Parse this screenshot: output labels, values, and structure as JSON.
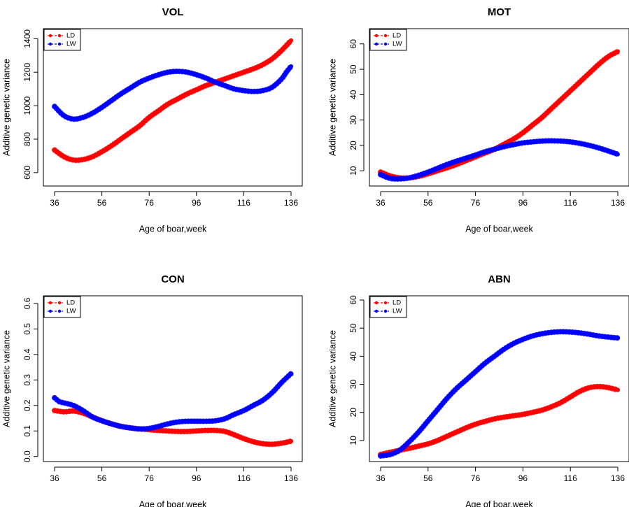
{
  "colors": {
    "LD": "#ff0000",
    "LW": "#0000ff",
    "axis": "#000000"
  },
  "chart_data": [
    {
      "type": "line",
      "title": "VOL",
      "xlabel": "Age of boar,week",
      "ylabel": "Additive genetic variance",
      "xlim": [
        36,
        136
      ],
      "ylim": [
        520,
        1460
      ],
      "xticks": [
        "36",
        "56",
        "76",
        "96",
        "116",
        "136"
      ],
      "yticks": [
        "600",
        "800",
        "1000",
        "1200",
        "1400"
      ],
      "legend": {
        "placement": "top-left",
        "entries": [
          "LD",
          "LW"
        ]
      },
      "series": [
        {
          "name": "LD",
          "x": [
            36,
            40,
            44,
            48,
            52,
            56,
            60,
            64,
            68,
            72,
            76,
            80,
            84,
            88,
            92,
            96,
            100,
            104,
            108,
            112,
            116,
            120,
            124,
            128,
            132,
            136
          ],
          "values": [
            735,
            695,
            675,
            678,
            695,
            725,
            760,
            800,
            840,
            880,
            930,
            970,
            1010,
            1040,
            1070,
            1095,
            1120,
            1140,
            1160,
            1180,
            1200,
            1220,
            1245,
            1280,
            1330,
            1390
          ]
        },
        {
          "name": "LW",
          "x": [
            36,
            40,
            44,
            48,
            52,
            56,
            60,
            64,
            68,
            72,
            76,
            80,
            84,
            88,
            92,
            96,
            100,
            104,
            108,
            112,
            116,
            120,
            124,
            128,
            132,
            134,
            136
          ],
          "values": [
            995,
            940,
            920,
            930,
            955,
            990,
            1030,
            1070,
            1105,
            1140,
            1165,
            1185,
            1200,
            1205,
            1200,
            1185,
            1165,
            1140,
            1120,
            1100,
            1090,
            1085,
            1090,
            1110,
            1160,
            1200,
            1235
          ]
        }
      ]
    },
    {
      "type": "line",
      "title": "MOT",
      "xlabel": "Age of boar,week",
      "ylabel": "Additive genetic variance",
      "xlim": [
        36,
        136
      ],
      "ylim": [
        4,
        66
      ],
      "xticks": [
        "36",
        "56",
        "76",
        "96",
        "116",
        "136"
      ],
      "yticks": [
        "10",
        "20",
        "30",
        "40",
        "50",
        "60"
      ],
      "legend": {
        "placement": "top-left",
        "entries": [
          "LD",
          "LW"
        ]
      },
      "series": [
        {
          "name": "LD",
          "x": [
            36,
            40,
            44,
            48,
            52,
            56,
            60,
            64,
            68,
            72,
            76,
            80,
            84,
            88,
            92,
            96,
            100,
            104,
            108,
            112,
            116,
            120,
            124,
            128,
            132,
            136
          ],
          "values": [
            9.5,
            8,
            7.2,
            7.2,
            7.8,
            8.8,
            10,
            11.2,
            12.5,
            14,
            15.5,
            17,
            18.5,
            20.5,
            22.5,
            25,
            28,
            31,
            34.5,
            38,
            41.5,
            45,
            48.5,
            52,
            55,
            57
          ]
        },
        {
          "name": "LW",
          "x": [
            36,
            40,
            44,
            48,
            52,
            56,
            60,
            64,
            68,
            72,
            76,
            80,
            84,
            88,
            92,
            96,
            100,
            104,
            108,
            112,
            116,
            120,
            124,
            128,
            132,
            136
          ],
          "values": [
            8.5,
            7,
            6.8,
            7.2,
            8.2,
            9.5,
            11,
            12.5,
            13.8,
            15,
            16.2,
            17.5,
            18.5,
            19.5,
            20.3,
            21,
            21.4,
            21.7,
            21.8,
            21.7,
            21.4,
            20.8,
            20,
            19,
            17.8,
            16.5
          ]
        }
      ]
    },
    {
      "type": "line",
      "title": "CON",
      "xlabel": "Age of boar,week",
      "ylabel": "Additive genetic variance",
      "xlim": [
        36,
        136
      ],
      "ylim": [
        -0.02,
        0.63
      ],
      "xticks": [
        "36",
        "56",
        "76",
        "96",
        "116",
        "136"
      ],
      "yticks": [
        "0.0",
        "0.1",
        "0.2",
        "0.3",
        "0.4",
        "0.5",
        "0.6"
      ],
      "legend": {
        "placement": "top-left",
        "entries": [
          "LD",
          "LW"
        ]
      },
      "series": [
        {
          "name": "LD",
          "x": [
            36,
            40,
            44,
            48,
            52,
            56,
            60,
            64,
            68,
            72,
            76,
            80,
            84,
            88,
            92,
            96,
            100,
            104,
            108,
            112,
            116,
            120,
            124,
            128,
            132,
            136
          ],
          "values": [
            0.18,
            0.175,
            0.178,
            0.17,
            0.155,
            0.14,
            0.128,
            0.118,
            0.112,
            0.108,
            0.105,
            0.102,
            0.1,
            0.098,
            0.098,
            0.1,
            0.102,
            0.102,
            0.098,
            0.085,
            0.07,
            0.058,
            0.05,
            0.048,
            0.052,
            0.06
          ]
        },
        {
          "name": "LW",
          "x": [
            36,
            38,
            40,
            44,
            48,
            52,
            56,
            60,
            64,
            68,
            72,
            76,
            80,
            84,
            88,
            92,
            96,
            100,
            104,
            108,
            112,
            116,
            120,
            124,
            128,
            132,
            136
          ],
          "values": [
            0.23,
            0.215,
            0.21,
            0.2,
            0.18,
            0.155,
            0.14,
            0.128,
            0.118,
            0.112,
            0.108,
            0.11,
            0.118,
            0.128,
            0.135,
            0.138,
            0.138,
            0.138,
            0.14,
            0.148,
            0.165,
            0.18,
            0.2,
            0.22,
            0.25,
            0.29,
            0.325
          ]
        }
      ]
    },
    {
      "type": "line",
      "title": "ABN",
      "xlabel": "Age of boar,week",
      "ylabel": "Additive genetic variance",
      "xlim": [
        36,
        136
      ],
      "ylim": [
        2.5,
        61.5
      ],
      "xticks": [
        "36",
        "56",
        "76",
        "96",
        "116",
        "136"
      ],
      "yticks": [
        "10",
        "20",
        "30",
        "40",
        "50",
        "60"
      ],
      "legend": {
        "placement": "top-left",
        "entries": [
          "LD",
          "LW"
        ]
      },
      "series": [
        {
          "name": "LD",
          "x": [
            36,
            40,
            44,
            48,
            52,
            56,
            60,
            64,
            68,
            72,
            76,
            80,
            84,
            88,
            92,
            96,
            100,
            104,
            108,
            112,
            116,
            120,
            124,
            128,
            132,
            136
          ],
          "values": [
            5,
            5.8,
            6.5,
            7.2,
            8,
            8.8,
            10,
            11.5,
            13,
            14.5,
            15.8,
            16.8,
            17.7,
            18.3,
            18.8,
            19.3,
            20,
            20.8,
            22,
            23.5,
            25.5,
            27.5,
            28.8,
            29.2,
            28.8,
            28
          ]
        },
        {
          "name": "LW",
          "x": [
            36,
            40,
            44,
            48,
            52,
            56,
            60,
            64,
            68,
            72,
            76,
            80,
            84,
            88,
            92,
            96,
            100,
            104,
            108,
            112,
            116,
            120,
            124,
            128,
            132,
            136
          ],
          "values": [
            4.5,
            5,
            6.5,
            9.5,
            13,
            17,
            21,
            25,
            28.5,
            31.5,
            34.5,
            37.5,
            40,
            42.5,
            44.5,
            46,
            47.2,
            48,
            48.5,
            48.7,
            48.6,
            48.3,
            47.8,
            47.2,
            46.8,
            46.5
          ]
        }
      ]
    }
  ]
}
